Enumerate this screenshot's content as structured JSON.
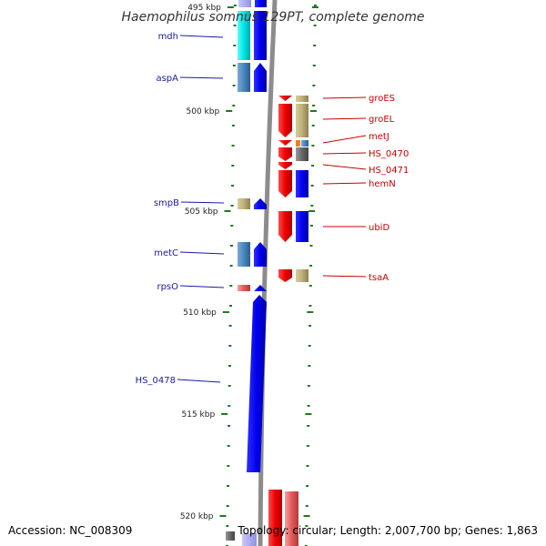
{
  "title": "Haemophilus somnus 129PT, complete genome",
  "footer": {
    "accession": "Accession: NC_008309",
    "summary": "Topology: circular; Length: 2,007,700 bp; Genes: 1,863"
  },
  "colors": {
    "left_label": "#1a1aa6",
    "right_label": "#cc0000",
    "tick": "#1f7a1f",
    "backbone": "#8c8c8c"
  },
  "kbp_labels": [
    "495 kbp",
    "500 kbp",
    "505 kbp",
    "510 kbp",
    "515 kbp",
    "520 kbp"
  ],
  "genes_left": [
    {
      "name": "mdh",
      "color": "#00e5e5"
    },
    {
      "name": "aspA",
      "color": "#4a86c0"
    },
    {
      "name": "smpB",
      "color": "#bdb078"
    },
    {
      "name": "metC",
      "color": "#4a86c0"
    },
    {
      "name": "rpsO",
      "color": "#e35a5a"
    },
    {
      "name": "HS_0478",
      "color": "#0000ee"
    }
  ],
  "genes_right": [
    {
      "name": "groES",
      "color": "#bdb078"
    },
    {
      "name": "groEL",
      "color": "#bdb078"
    },
    {
      "name": "metJ",
      "color": "#4a86c0"
    },
    {
      "name": "HS_0470",
      "color": "#666666"
    },
    {
      "name": "HS_0471",
      "color": "#ee0000"
    },
    {
      "name": "hemN",
      "color": "#0000ee"
    },
    {
      "name": "ubiD",
      "color": "#0000ee"
    },
    {
      "name": "tsaA",
      "color": "#bdb078"
    }
  ]
}
